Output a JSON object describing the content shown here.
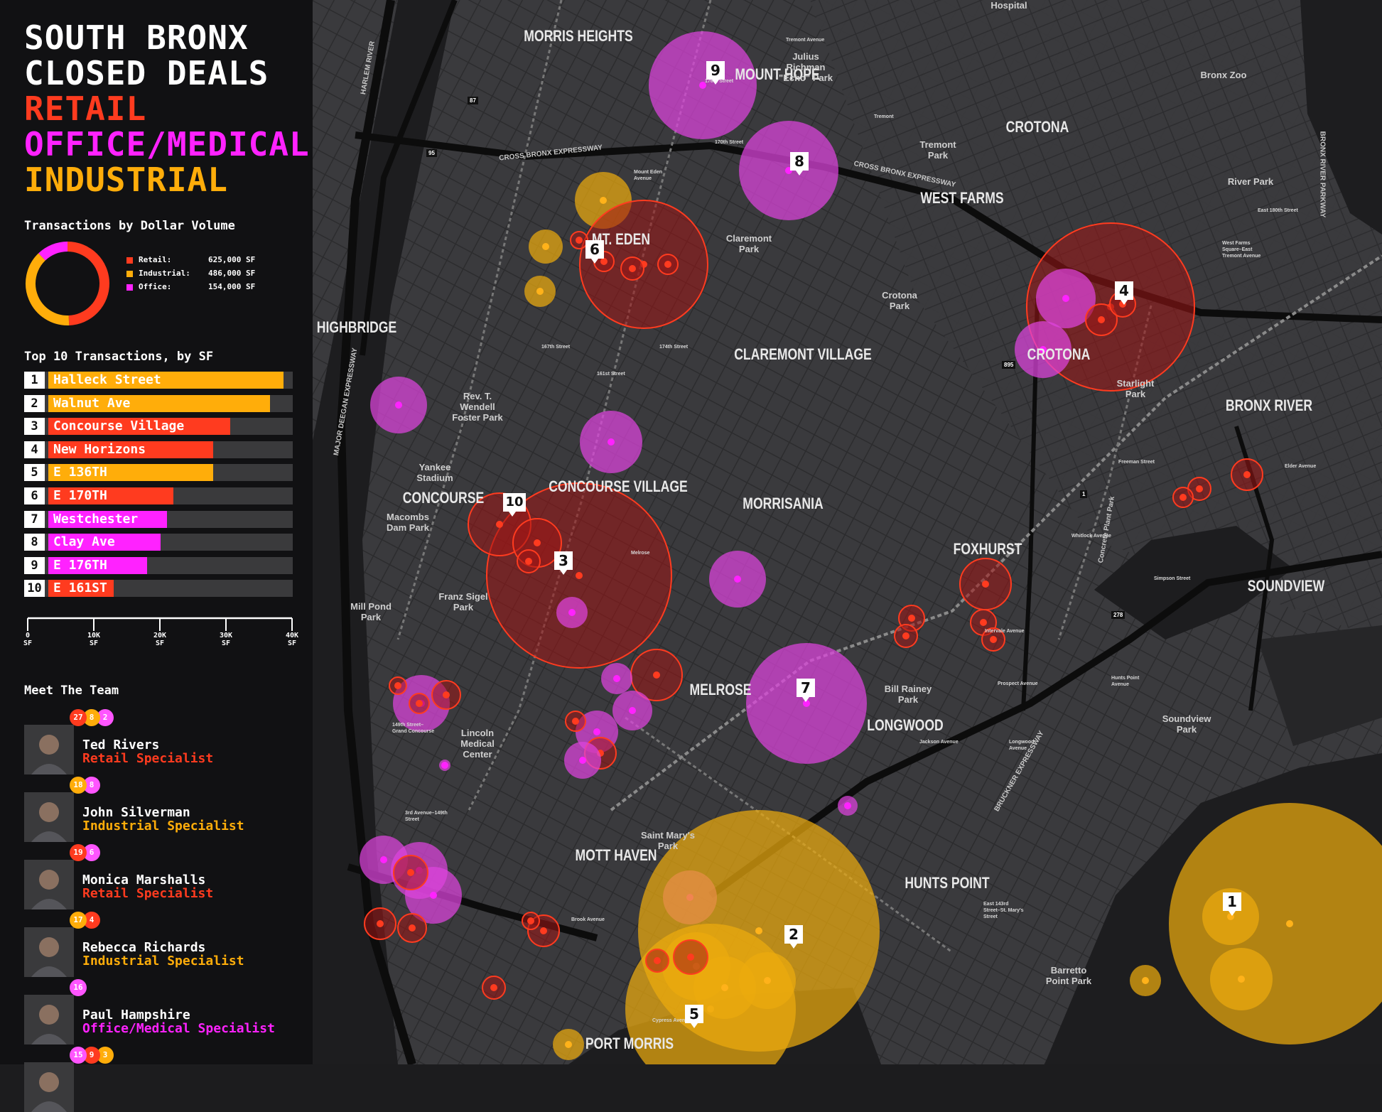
{
  "title": {
    "line1": "SOUTH BRONX",
    "line2": "CLOSED DEALS",
    "retail": "RETAIL",
    "office": "OFFICE/MEDICAL",
    "industrial": "INDUSTRIAL"
  },
  "colors": {
    "retail": "#ff3b1f",
    "office": "#ff22ff",
    "industrial": "#ffad0a",
    "background": "#111113",
    "map": "#3d3d40"
  },
  "donut": {
    "heading": "Transactions by Dollar Volume",
    "legend": [
      {
        "label": "Retail:",
        "value": "625,000 SF",
        "color": "#ff3b1f"
      },
      {
        "label": "Industrial:",
        "value": "486,000 SF",
        "color": "#ffad0a"
      },
      {
        "label": "Office:",
        "value": "154,000 SF",
        "color": "#ff22ff"
      }
    ]
  },
  "top10": {
    "heading": "Top 10 Transactions, by SF",
    "axis_ticks": [
      {
        "v": 0,
        "l1": "0",
        "l2": "SF"
      },
      {
        "v": 10000,
        "l1": "10K",
        "l2": "SF"
      },
      {
        "v": 20000,
        "l1": "20K",
        "l2": "SF"
      },
      {
        "v": 30000,
        "l1": "30K",
        "l2": "SF"
      },
      {
        "v": 40000,
        "l1": "40K",
        "l2": "SF"
      }
    ],
    "items": [
      {
        "rank": "1",
        "label": "Halleck Street",
        "sf": 39000,
        "type": "industrial"
      },
      {
        "rank": "2",
        "label": "Walnut Ave",
        "sf": 37000,
        "type": "industrial"
      },
      {
        "rank": "3",
        "label": "Concourse Village",
        "sf": 31000,
        "type": "retail"
      },
      {
        "rank": "4",
        "label": "New Horizons",
        "sf": 28500,
        "type": "retail"
      },
      {
        "rank": "5",
        "label": "E 136TH",
        "sf": 28500,
        "type": "industrial"
      },
      {
        "rank": "6",
        "label": "E 170TH",
        "sf": 22500,
        "type": "retail"
      },
      {
        "rank": "7",
        "label": "Westchester",
        "sf": 21500,
        "type": "office"
      },
      {
        "rank": "8",
        "label": "Clay Ave",
        "sf": 20500,
        "type": "office"
      },
      {
        "rank": "9",
        "label": "E 176TH",
        "sf": 18500,
        "type": "office"
      },
      {
        "rank": "10",
        "label": "E 161ST",
        "sf": 13500,
        "type": "retail"
      }
    ]
  },
  "team": {
    "heading": "Meet The Team",
    "members": [
      {
        "name": "Ted Rivers",
        "role": "Retail Specialist",
        "role_color": "#ff3b1f",
        "badges": [
          {
            "n": "27",
            "c": "#ff3b1f"
          },
          {
            "n": "8",
            "c": "#ffad0a"
          },
          {
            "n": "2",
            "c": "#ff55ff"
          }
        ]
      },
      {
        "name": "John Silverman",
        "role": "Industrial Specialist",
        "role_color": "#ffad0a",
        "badges": [
          {
            "n": "18",
            "c": "#ffad0a"
          },
          {
            "n": "8",
            "c": "#ff55ff"
          }
        ]
      },
      {
        "name": "Monica Marshalls",
        "role": "Retail Specialist",
        "role_color": "#ff3b1f",
        "badges": [
          {
            "n": "19",
            "c": "#ff3b1f"
          },
          {
            "n": "6",
            "c": "#ff55ff"
          }
        ]
      },
      {
        "name": "Rebecca Richards",
        "role": "Industrial Specialist",
        "role_color": "#ffad0a",
        "badges": [
          {
            "n": "17",
            "c": "#ffad0a"
          },
          {
            "n": "4",
            "c": "#ff3b1f"
          }
        ]
      },
      {
        "name": "Paul Hampshire",
        "role": "Office/Medical Specialist",
        "role_color": "#ff22ff",
        "badges": [
          {
            "n": "16",
            "c": "#ff55ff"
          }
        ]
      },
      {
        "name": "",
        "role": "",
        "role_color": "#ffffff",
        "badges": [
          {
            "n": "15",
            "c": "#ff55ff"
          },
          {
            "n": "9",
            "c": "#ff3b1f"
          },
          {
            "n": "3",
            "c": "#ffad0a"
          }
        ]
      }
    ]
  },
  "map": {
    "neighborhoods": [
      "MORRIS HEIGHTS",
      "MOUNT HOPE",
      "CROTONA",
      "WEST FARMS",
      "MT. EDEN",
      "HIGHBRIDGE",
      "CLAREMONT VILLAGE",
      "CROTONA",
      "BRONX RIVER",
      "CONCOURSE",
      "CONCOURSE VILLAGE",
      "MORRISANIA",
      "FOXHURST",
      "SOUNDVIEW",
      "MELROSE",
      "LONGWOOD",
      "MOTT HAVEN",
      "HUNTS POINT",
      "PORT MORRIS"
    ],
    "parks": [
      "Julius Richman \"Echo\" Park",
      "Bronx Zoo",
      "Tremont Park",
      "Claremont Park",
      "Crotona Park",
      "River Park",
      "Starlight Park",
      "Rev. T. Wendell Foster Park",
      "Yankee Stadium",
      "Macombs Dam Park",
      "Franz Sigel Park",
      "Mill Pond Park",
      "Lincoln Medical Center",
      "Bill Rainey Park",
      "Saint Mary's Park",
      "Soundview Park",
      "Barretto Point Park",
      "Hospital"
    ],
    "roads": [
      "CROSS BRONX EXPRESSWAY",
      "CROSS BRONX EXPRESSWAY",
      "MAJOR DEEGAN EXPRESSWAY",
      "BRONX RIVER PARKWAY",
      "BRUCKNER EXPRESSWAY",
      "HARLEM RIVER",
      "Concrete Plant Park"
    ],
    "stations": [
      "Tremont Avenue",
      "176th Street",
      "170th Street",
      "Mount Eden Avenue",
      "Tremont",
      "West Farms Square–East Tremont Avenue",
      "East 180th Street",
      "174th Street",
      "167th Street",
      "161st Street",
      "Freeman Street",
      "Simpson Street",
      "Intervale Avenue",
      "Prospect Avenue",
      "Jackson Avenue",
      "3rd Avenue–149th Street",
      "149th Street–Grand Concourse",
      "Longwood Avenue",
      "East 143rd Street–St. Mary's Street",
      "Brook Avenue",
      "Cypress Avenue",
      "Melrose",
      "Whitlock Avenue",
      "Hunts Point Avenue",
      "Elder Avenue"
    ],
    "highway_shields": [
      "87",
      "95",
      "895",
      "278",
      "1"
    ],
    "rank_markers": [
      "1",
      "2",
      "3",
      "4",
      "5",
      "6",
      "7",
      "8",
      "9",
      "10"
    ]
  }
}
